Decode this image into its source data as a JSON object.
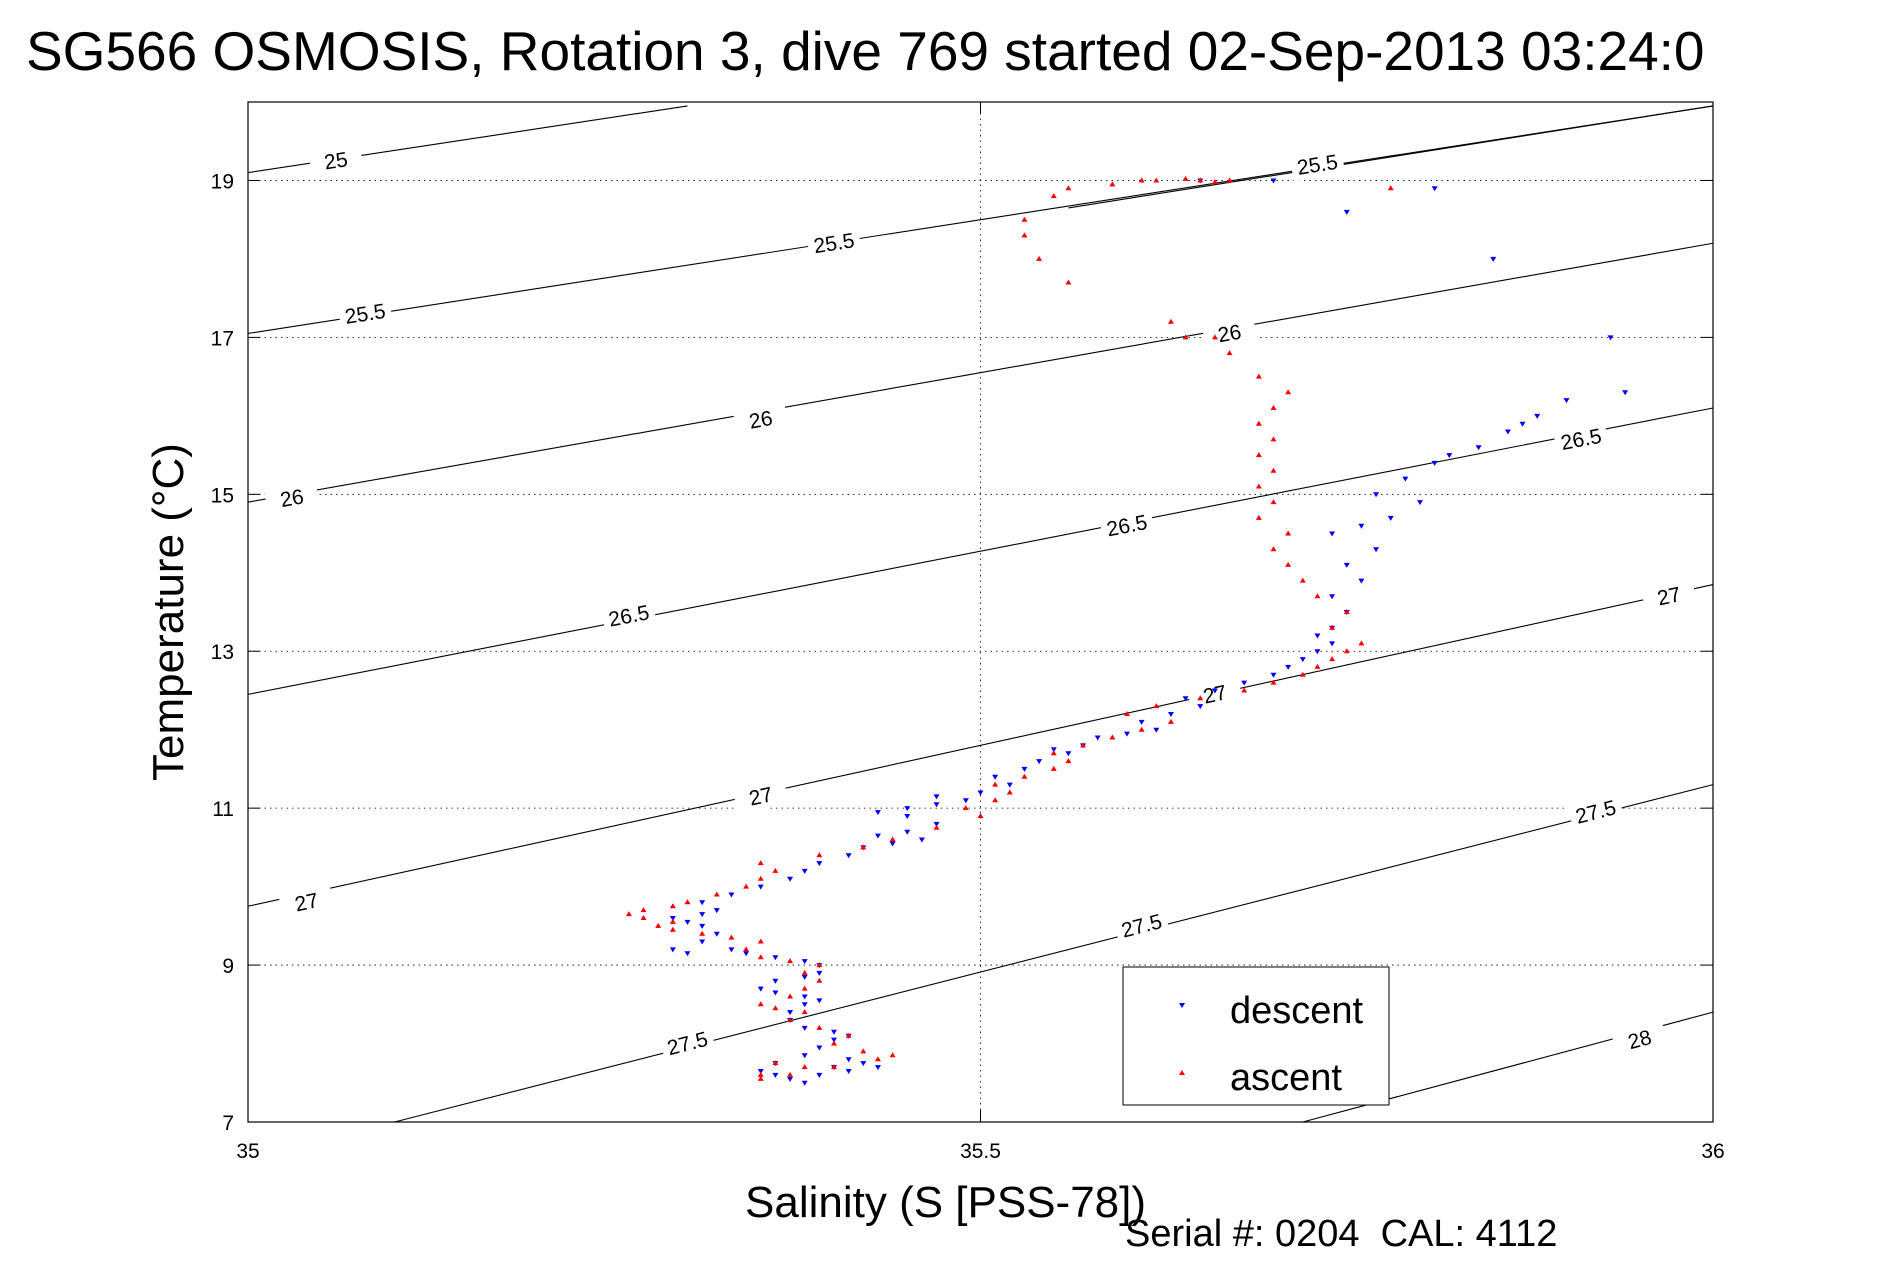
{
  "chart_data": {
    "type": "scatter",
    "title": "SG566 OSMOSIS, Rotation 3, dive 769 started 02-Sep-2013 03:24:0",
    "xlabel": "Salinity (S [PSS-78])",
    "ylabel": "Temperature (°C)",
    "xlim": [
      35,
      36
    ],
    "ylim": [
      7,
      20
    ],
    "xticks": [
      35,
      35.5,
      36
    ],
    "xtick_labels": [
      "35",
      "35.5",
      "36"
    ],
    "yticks": [
      7,
      9,
      11,
      13,
      15,
      17,
      19
    ],
    "ytick_labels": [
      "7",
      "9",
      "11",
      "13",
      "15",
      "17",
      "19"
    ],
    "grid": "dotted",
    "legend_position": "bottom-right",
    "footer": "Serial #: 0204  CAL: 4112",
    "contours": [
      {
        "level": "25",
        "x": [
          35,
          35.3
        ],
        "y": [
          19.1,
          19.95
        ],
        "label_at": [
          35.06,
          19.25
        ]
      },
      {
        "level": "25.5",
        "x": [
          35,
          36
        ],
        "y": [
          17.05,
          19.95
        ],
        "label_at": [
          35.08,
          17.3
        ]
      },
      {
        "level": "25.5",
        "x": [
          35,
          36
        ],
        "y": [
          17.05,
          19.95
        ],
        "label_at": [
          35.4,
          18.2
        ]
      },
      {
        "level": "25.5",
        "x": [
          35.56,
          36
        ],
        "y": [
          18.65,
          19.95
        ],
        "label_at": [
          35.73,
          19.2
        ]
      },
      {
        "level": "26",
        "x": [
          35,
          36
        ],
        "y": [
          14.9,
          18.2
        ],
        "label_at": [
          35.03,
          14.95
        ]
      },
      {
        "level": "26",
        "x": [
          35,
          36
        ],
        "y": [
          14.9,
          18.2
        ],
        "label_at": [
          35.35,
          15.95
        ]
      },
      {
        "level": "26",
        "x": [
          35,
          36
        ],
        "y": [
          14.9,
          18.2
        ],
        "label_at": [
          35.67,
          17.05
        ]
      },
      {
        "level": "26.5",
        "x": [
          35,
          36
        ],
        "y": [
          12.45,
          16.1
        ],
        "label_at": [
          35.26,
          13.45
        ]
      },
      {
        "level": "26.5",
        "x": [
          35,
          36
        ],
        "y": [
          12.45,
          16.1
        ],
        "label_at": [
          35.6,
          14.6
        ]
      },
      {
        "level": "26.5",
        "x": [
          35,
          36
        ],
        "y": [
          12.45,
          16.1
        ],
        "label_at": [
          35.91,
          15.7
        ]
      },
      {
        "level": "27",
        "x": [
          35,
          36
        ],
        "y": [
          9.75,
          13.85
        ],
        "label_at": [
          35.04,
          9.8
        ]
      },
      {
        "level": "27",
        "x": [
          35,
          36
        ],
        "y": [
          9.75,
          13.85
        ],
        "label_at": [
          35.35,
          11.15
        ]
      },
      {
        "level": "27",
        "x": [
          35,
          36
        ],
        "y": [
          9.75,
          13.85
        ],
        "label_at": [
          35.66,
          12.45
        ]
      },
      {
        "level": "27",
        "x": [
          35,
          36
        ],
        "y": [
          9.75,
          13.85
        ],
        "label_at": [
          35.97,
          13.7
        ]
      },
      {
        "level": "27.5",
        "x": [
          35.1,
          36
        ],
        "y": [
          7,
          11.3
        ],
        "label_at": [
          35.3,
          8.0
        ]
      },
      {
        "level": "27.5",
        "x": [
          35.1,
          36
        ],
        "y": [
          7,
          11.3
        ],
        "label_at": [
          35.61,
          9.5
        ]
      },
      {
        "level": "27.5",
        "x": [
          35.1,
          36
        ],
        "y": [
          7,
          11.3
        ],
        "label_at": [
          35.92,
          10.95
        ]
      },
      {
        "level": "28",
        "x": [
          35.72,
          36
        ],
        "y": [
          7,
          8.4
        ],
        "label_at": [
          35.95,
          8.05
        ]
      }
    ],
    "series": [
      {
        "name": "descent",
        "color": "#0000ff",
        "marker": "triangle-down",
        "points": [
          [
            35.38,
            7.5
          ],
          [
            35.37,
            7.55
          ],
          [
            35.39,
            7.6
          ],
          [
            35.4,
            7.7
          ],
          [
            35.41,
            7.8
          ],
          [
            35.42,
            7.75
          ],
          [
            35.43,
            7.7
          ],
          [
            35.41,
            7.65
          ],
          [
            35.36,
            7.6
          ],
          [
            35.35,
            7.65
          ],
          [
            35.36,
            7.75
          ],
          [
            35.38,
            7.85
          ],
          [
            35.39,
            7.95
          ],
          [
            35.4,
            8.05
          ],
          [
            35.41,
            8.1
          ],
          [
            35.4,
            8.15
          ],
          [
            35.38,
            8.2
          ],
          [
            35.37,
            8.3
          ],
          [
            35.37,
            8.4
          ],
          [
            35.38,
            8.5
          ],
          [
            35.39,
            8.55
          ],
          [
            35.38,
            8.6
          ],
          [
            35.36,
            8.65
          ],
          [
            35.35,
            8.7
          ],
          [
            35.36,
            8.8
          ],
          [
            35.38,
            8.85
          ],
          [
            35.39,
            8.9
          ],
          [
            35.39,
            9.0
          ],
          [
            35.38,
            9.05
          ],
          [
            35.36,
            9.1
          ],
          [
            35.34,
            9.15
          ],
          [
            35.33,
            9.2
          ],
          [
            35.3,
            9.15
          ],
          [
            35.29,
            9.2
          ],
          [
            35.31,
            9.3
          ],
          [
            35.32,
            9.4
          ],
          [
            35.31,
            9.5
          ],
          [
            35.3,
            9.55
          ],
          [
            35.29,
            9.6
          ],
          [
            35.31,
            9.65
          ],
          [
            35.32,
            9.7
          ],
          [
            35.31,
            9.8
          ],
          [
            35.33,
            9.9
          ],
          [
            35.35,
            10.0
          ],
          [
            35.37,
            10.1
          ],
          [
            35.38,
            10.2
          ],
          [
            35.39,
            10.3
          ],
          [
            35.41,
            10.4
          ],
          [
            35.42,
            10.5
          ],
          [
            35.44,
            10.55
          ],
          [
            35.46,
            10.6
          ],
          [
            35.43,
            10.65
          ],
          [
            35.45,
            10.7
          ],
          [
            35.47,
            10.8
          ],
          [
            35.45,
            10.9
          ],
          [
            35.43,
            10.95
          ],
          [
            35.45,
            11.0
          ],
          [
            35.47,
            11.05
          ],
          [
            35.49,
            11.1
          ],
          [
            35.47,
            11.15
          ],
          [
            35.5,
            11.2
          ],
          [
            35.52,
            11.3
          ],
          [
            35.51,
            11.4
          ],
          [
            35.53,
            11.5
          ],
          [
            35.54,
            11.6
          ],
          [
            35.56,
            11.7
          ],
          [
            35.55,
            11.75
          ],
          [
            35.57,
            11.8
          ],
          [
            35.58,
            11.9
          ],
          [
            35.6,
            11.95
          ],
          [
            35.62,
            12.0
          ],
          [
            35.61,
            12.1
          ],
          [
            35.63,
            12.2
          ],
          [
            35.65,
            12.3
          ],
          [
            35.64,
            12.4
          ],
          [
            35.66,
            12.5
          ],
          [
            35.68,
            12.6
          ],
          [
            35.7,
            12.7
          ],
          [
            35.71,
            12.8
          ],
          [
            35.72,
            12.9
          ],
          [
            35.73,
            13.0
          ],
          [
            35.74,
            13.1
          ],
          [
            35.73,
            13.2
          ],
          [
            35.74,
            13.3
          ],
          [
            35.75,
            13.5
          ],
          [
            35.74,
            13.7
          ],
          [
            35.76,
            13.9
          ],
          [
            35.75,
            14.1
          ],
          [
            35.77,
            14.3
          ],
          [
            35.74,
            14.5
          ],
          [
            35.76,
            14.6
          ],
          [
            35.78,
            14.7
          ],
          [
            35.8,
            14.9
          ],
          [
            35.77,
            15.0
          ],
          [
            35.79,
            15.2
          ],
          [
            35.81,
            15.4
          ],
          [
            35.84,
            15.6
          ],
          [
            35.86,
            15.8
          ],
          [
            35.88,
            16.0
          ],
          [
            35.9,
            16.2
          ],
          [
            35.94,
            16.3
          ],
          [
            35.82,
            15.5
          ],
          [
            35.87,
            15.9
          ],
          [
            35.93,
            17.0
          ],
          [
            35.85,
            18.0
          ],
          [
            35.81,
            18.9
          ],
          [
            35.75,
            18.6
          ],
          [
            35.65,
            19.0
          ],
          [
            35.7,
            19.0
          ]
        ]
      },
      {
        "name": "ascent",
        "color": "#ff0000",
        "marker": "triangle-up",
        "points": [
          [
            35.35,
            7.55
          ],
          [
            35.37,
            7.6
          ],
          [
            35.38,
            7.7
          ],
          [
            35.36,
            7.75
          ],
          [
            35.35,
            7.6
          ],
          [
            35.4,
            7.7
          ],
          [
            35.43,
            7.8
          ],
          [
            35.44,
            7.85
          ],
          [
            35.42,
            7.9
          ],
          [
            35.4,
            8.0
          ],
          [
            35.41,
            8.1
          ],
          [
            35.39,
            8.2
          ],
          [
            35.37,
            8.3
          ],
          [
            35.38,
            8.4
          ],
          [
            35.36,
            8.45
          ],
          [
            35.35,
            8.5
          ],
          [
            35.37,
            8.6
          ],
          [
            35.38,
            8.7
          ],
          [
            35.39,
            8.8
          ],
          [
            35.38,
            8.9
          ],
          [
            35.39,
            9.0
          ],
          [
            35.37,
            9.05
          ],
          [
            35.35,
            9.1
          ],
          [
            35.34,
            9.2
          ],
          [
            35.35,
            9.3
          ],
          [
            35.33,
            9.35
          ],
          [
            35.31,
            9.4
          ],
          [
            35.29,
            9.45
          ],
          [
            35.28,
            9.5
          ],
          [
            35.29,
            9.55
          ],
          [
            35.27,
            9.6
          ],
          [
            35.26,
            9.65
          ],
          [
            35.27,
            9.7
          ],
          [
            35.29,
            9.75
          ],
          [
            35.3,
            9.8
          ],
          [
            35.32,
            9.9
          ],
          [
            35.34,
            10.0
          ],
          [
            35.35,
            10.1
          ],
          [
            35.36,
            10.2
          ],
          [
            35.35,
            10.3
          ],
          [
            35.39,
            10.4
          ],
          [
            35.42,
            10.5
          ],
          [
            35.44,
            10.6
          ],
          [
            35.47,
            10.75
          ],
          [
            35.5,
            10.9
          ],
          [
            35.49,
            11.0
          ],
          [
            35.51,
            11.1
          ],
          [
            35.52,
            11.2
          ],
          [
            35.51,
            11.3
          ],
          [
            35.53,
            11.4
          ],
          [
            35.55,
            11.5
          ],
          [
            35.56,
            11.6
          ],
          [
            35.55,
            11.7
          ],
          [
            35.57,
            11.8
          ],
          [
            35.59,
            11.9
          ],
          [
            35.61,
            12.0
          ],
          [
            35.63,
            12.1
          ],
          [
            35.6,
            12.2
          ],
          [
            35.62,
            12.3
          ],
          [
            35.65,
            12.4
          ],
          [
            35.68,
            12.5
          ],
          [
            35.7,
            12.6
          ],
          [
            35.72,
            12.7
          ],
          [
            35.73,
            12.8
          ],
          [
            35.74,
            12.9
          ],
          [
            35.75,
            13.0
          ],
          [
            35.76,
            13.1
          ],
          [
            35.74,
            13.3
          ],
          [
            35.75,
            13.5
          ],
          [
            35.73,
            13.7
          ],
          [
            35.72,
            13.9
          ],
          [
            35.71,
            14.1
          ],
          [
            35.7,
            14.3
          ],
          [
            35.71,
            14.5
          ],
          [
            35.69,
            14.7
          ],
          [
            35.7,
            14.9
          ],
          [
            35.69,
            15.1
          ],
          [
            35.7,
            15.3
          ],
          [
            35.69,
            15.5
          ],
          [
            35.7,
            15.7
          ],
          [
            35.69,
            15.9
          ],
          [
            35.7,
            16.1
          ],
          [
            35.71,
            16.3
          ],
          [
            35.69,
            16.5
          ],
          [
            35.67,
            16.8
          ],
          [
            35.66,
            17.0
          ],
          [
            35.63,
            17.2
          ],
          [
            35.64,
            17.0
          ],
          [
            35.61,
            19.0
          ],
          [
            35.62,
            19.0
          ],
          [
            35.64,
            19.02
          ],
          [
            35.65,
            19.0
          ],
          [
            35.66,
            18.98
          ],
          [
            35.67,
            19.0
          ],
          [
            35.59,
            18.95
          ],
          [
            35.55,
            18.8
          ],
          [
            35.56,
            18.9
          ],
          [
            35.53,
            18.3
          ],
          [
            35.54,
            18.0
          ],
          [
            35.56,
            17.7
          ],
          [
            35.53,
            18.5
          ],
          [
            35.78,
            18.9
          ]
        ]
      }
    ]
  }
}
